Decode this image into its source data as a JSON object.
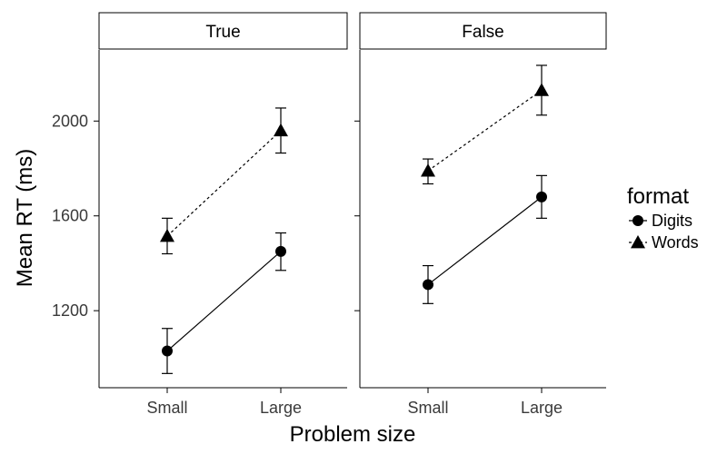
{
  "chart_data": {
    "type": "line",
    "xlabel": "Problem size",
    "ylabel": "Mean RT (ms)",
    "categories": [
      "Small",
      "Large"
    ],
    "ylim": [
      875,
      2300
    ],
    "yticks": [
      1200,
      1600,
      2000
    ],
    "grid": false,
    "legend": {
      "title": "format",
      "position": "right",
      "entries": [
        {
          "label": "Digits",
          "marker": "circle",
          "linestyle": "solid"
        },
        {
          "label": "Words",
          "marker": "triangle",
          "linestyle": "dotted"
        }
      ]
    },
    "panels": [
      {
        "strip": "True",
        "series": [
          {
            "name": "Digits",
            "values": [
              1030,
              1450
            ],
            "err_low": [
              935,
              1370
            ],
            "err_high": [
              1125,
              1528
            ]
          },
          {
            "name": "Words",
            "values": [
              1515,
              1960
            ],
            "err_low": [
              1440,
              1865
            ],
            "err_high": [
              1590,
              2055
            ]
          }
        ]
      },
      {
        "strip": "False",
        "series": [
          {
            "name": "Digits",
            "values": [
              1310,
              1680
            ],
            "err_low": [
              1230,
              1590
            ],
            "err_high": [
              1390,
              1770
            ]
          },
          {
            "name": "Words",
            "values": [
              1790,
              2130
            ],
            "err_low": [
              1735,
              2025
            ],
            "err_high": [
              1840,
              2235
            ]
          }
        ]
      }
    ]
  }
}
